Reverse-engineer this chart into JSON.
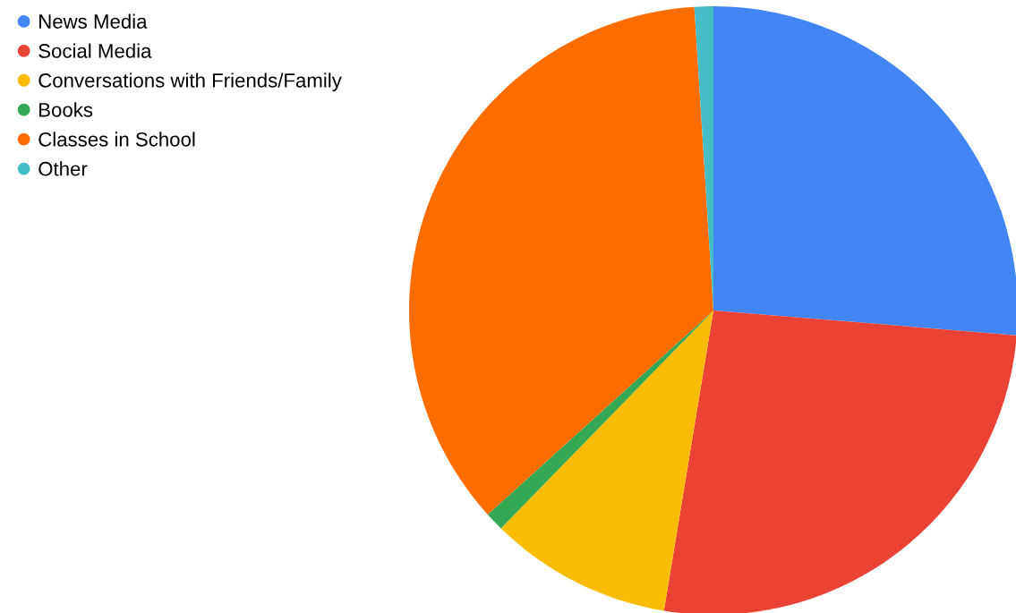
{
  "chart_data": {
    "type": "pie",
    "categories": [
      "News Media",
      "Social Media",
      "Conversations with Friends/Family",
      "Books",
      "Classes in School",
      "Other"
    ],
    "values": [
      26.3,
      26.3,
      9.7,
      1.0,
      35.7,
      1.0
    ],
    "colors": [
      "#4285f4",
      "#ea4335",
      "#fbbc04",
      "#34a853",
      "#ff6d01",
      "#46bdc6"
    ],
    "legend": "top left"
  }
}
